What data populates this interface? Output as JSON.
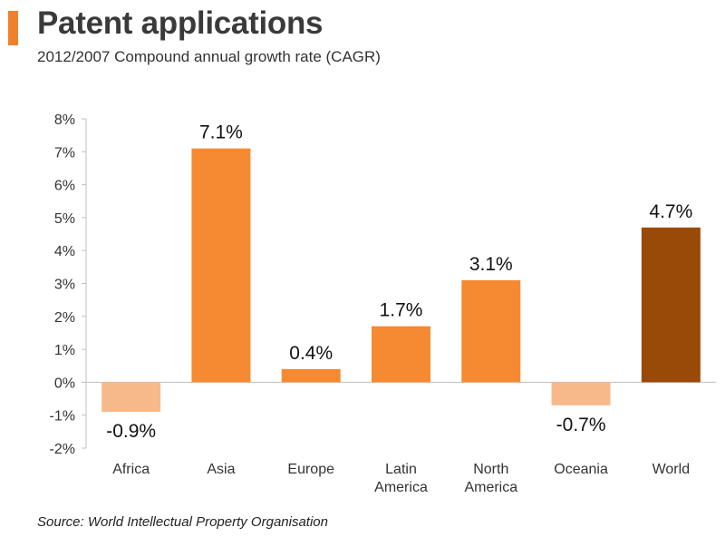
{
  "header": {
    "title": "Patent applications",
    "subtitle": "2012/2007 Compound annual growth rate (CAGR)"
  },
  "footer": {
    "source": "Source: World Intellectual Property Organisation"
  },
  "chart_data": {
    "type": "bar",
    "title": "Patent applications",
    "subtitle": "2012/2007 Compound annual growth rate (CAGR)",
    "categories": [
      "Africa",
      "Asia",
      "Europe",
      "Latin America",
      "North America",
      "Oceania",
      "World"
    ],
    "category_lines": [
      [
        "Africa"
      ],
      [
        "Asia"
      ],
      [
        "Europe"
      ],
      [
        "Latin",
        "America"
      ],
      [
        "North",
        "America"
      ],
      [
        "Oceania"
      ],
      [
        "World"
      ]
    ],
    "values": [
      -0.9,
      7.1,
      0.4,
      1.7,
      3.1,
      -0.7,
      4.7
    ],
    "data_labels": [
      "-0.9%",
      "7.1%",
      "0.4%",
      "1.7%",
      "3.1%",
      "-0.7%",
      "4.7%"
    ],
    "bar_colors": [
      "#f8b98a",
      "#f58a33",
      "#f58a33",
      "#f58a33",
      "#f58a33",
      "#f8b98a",
      "#9a4a08"
    ],
    "ylim": [
      -2,
      8
    ],
    "yticks": [
      -2,
      -1,
      0,
      1,
      2,
      3,
      4,
      5,
      6,
      7,
      8
    ],
    "ytick_labels": [
      "-2%",
      "-1%",
      "0%",
      "1%",
      "2%",
      "3%",
      "4%",
      "5%",
      "6%",
      "7%",
      "8%"
    ],
    "xlabel": "",
    "ylabel": "",
    "grid": false,
    "legend": "none"
  },
  "colors": {
    "accent": "#f0812a",
    "axis": "#bfbfbf"
  }
}
